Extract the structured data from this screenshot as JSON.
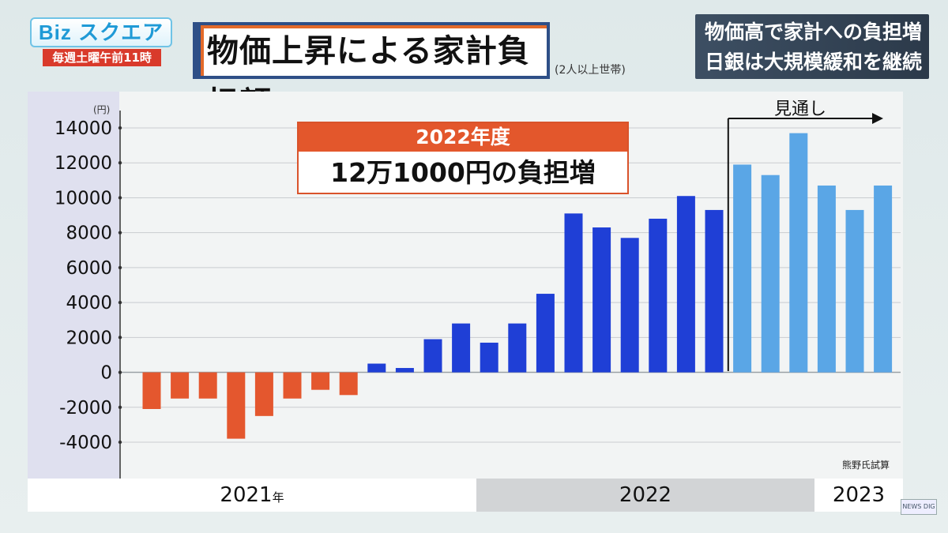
{
  "show": {
    "logo_text": "Biz スクエア",
    "schedule": "毎週土曜午前11時"
  },
  "title": {
    "main": "物価上昇による家計負担額",
    "note": "(2人以上世帯)"
  },
  "headline": {
    "line1": "物価高で家計への負担増",
    "line2": "日銀は大規模緩和を継続"
  },
  "callout": {
    "header": "2022年度",
    "main": "12万1000円の負担増"
  },
  "forecast_label": "見通し",
  "source_note": "熊野氏試算",
  "watermark": "NEWS DIG",
  "colors": {
    "negative": "#e4572e",
    "actual": "#1f3fd6",
    "forecast": "#5aa6e6"
  },
  "chart_data": {
    "type": "bar",
    "unit": "(円)",
    "ylim": [
      -4000,
      14000
    ],
    "yticks": [
      14000,
      12000,
      10000,
      8000,
      6000,
      4000,
      2000,
      0,
      -2000,
      -4000
    ],
    "grid": true,
    "years": [
      {
        "label": "2021",
        "suffix": "年"
      },
      {
        "label": "2022",
        "suffix": ""
      },
      {
        "label": "2023",
        "suffix": ""
      }
    ],
    "values": [
      -2100,
      -1500,
      -1500,
      -3800,
      -2500,
      -1500,
      -1000,
      -1300,
      500,
      250,
      1900,
      2800,
      1700,
      2800,
      4500,
      9100,
      8300,
      7700,
      8800,
      10100,
      9300,
      11900,
      11300,
      13700,
      10700,
      9300,
      10700
    ],
    "forecast_start_index": 21
  }
}
